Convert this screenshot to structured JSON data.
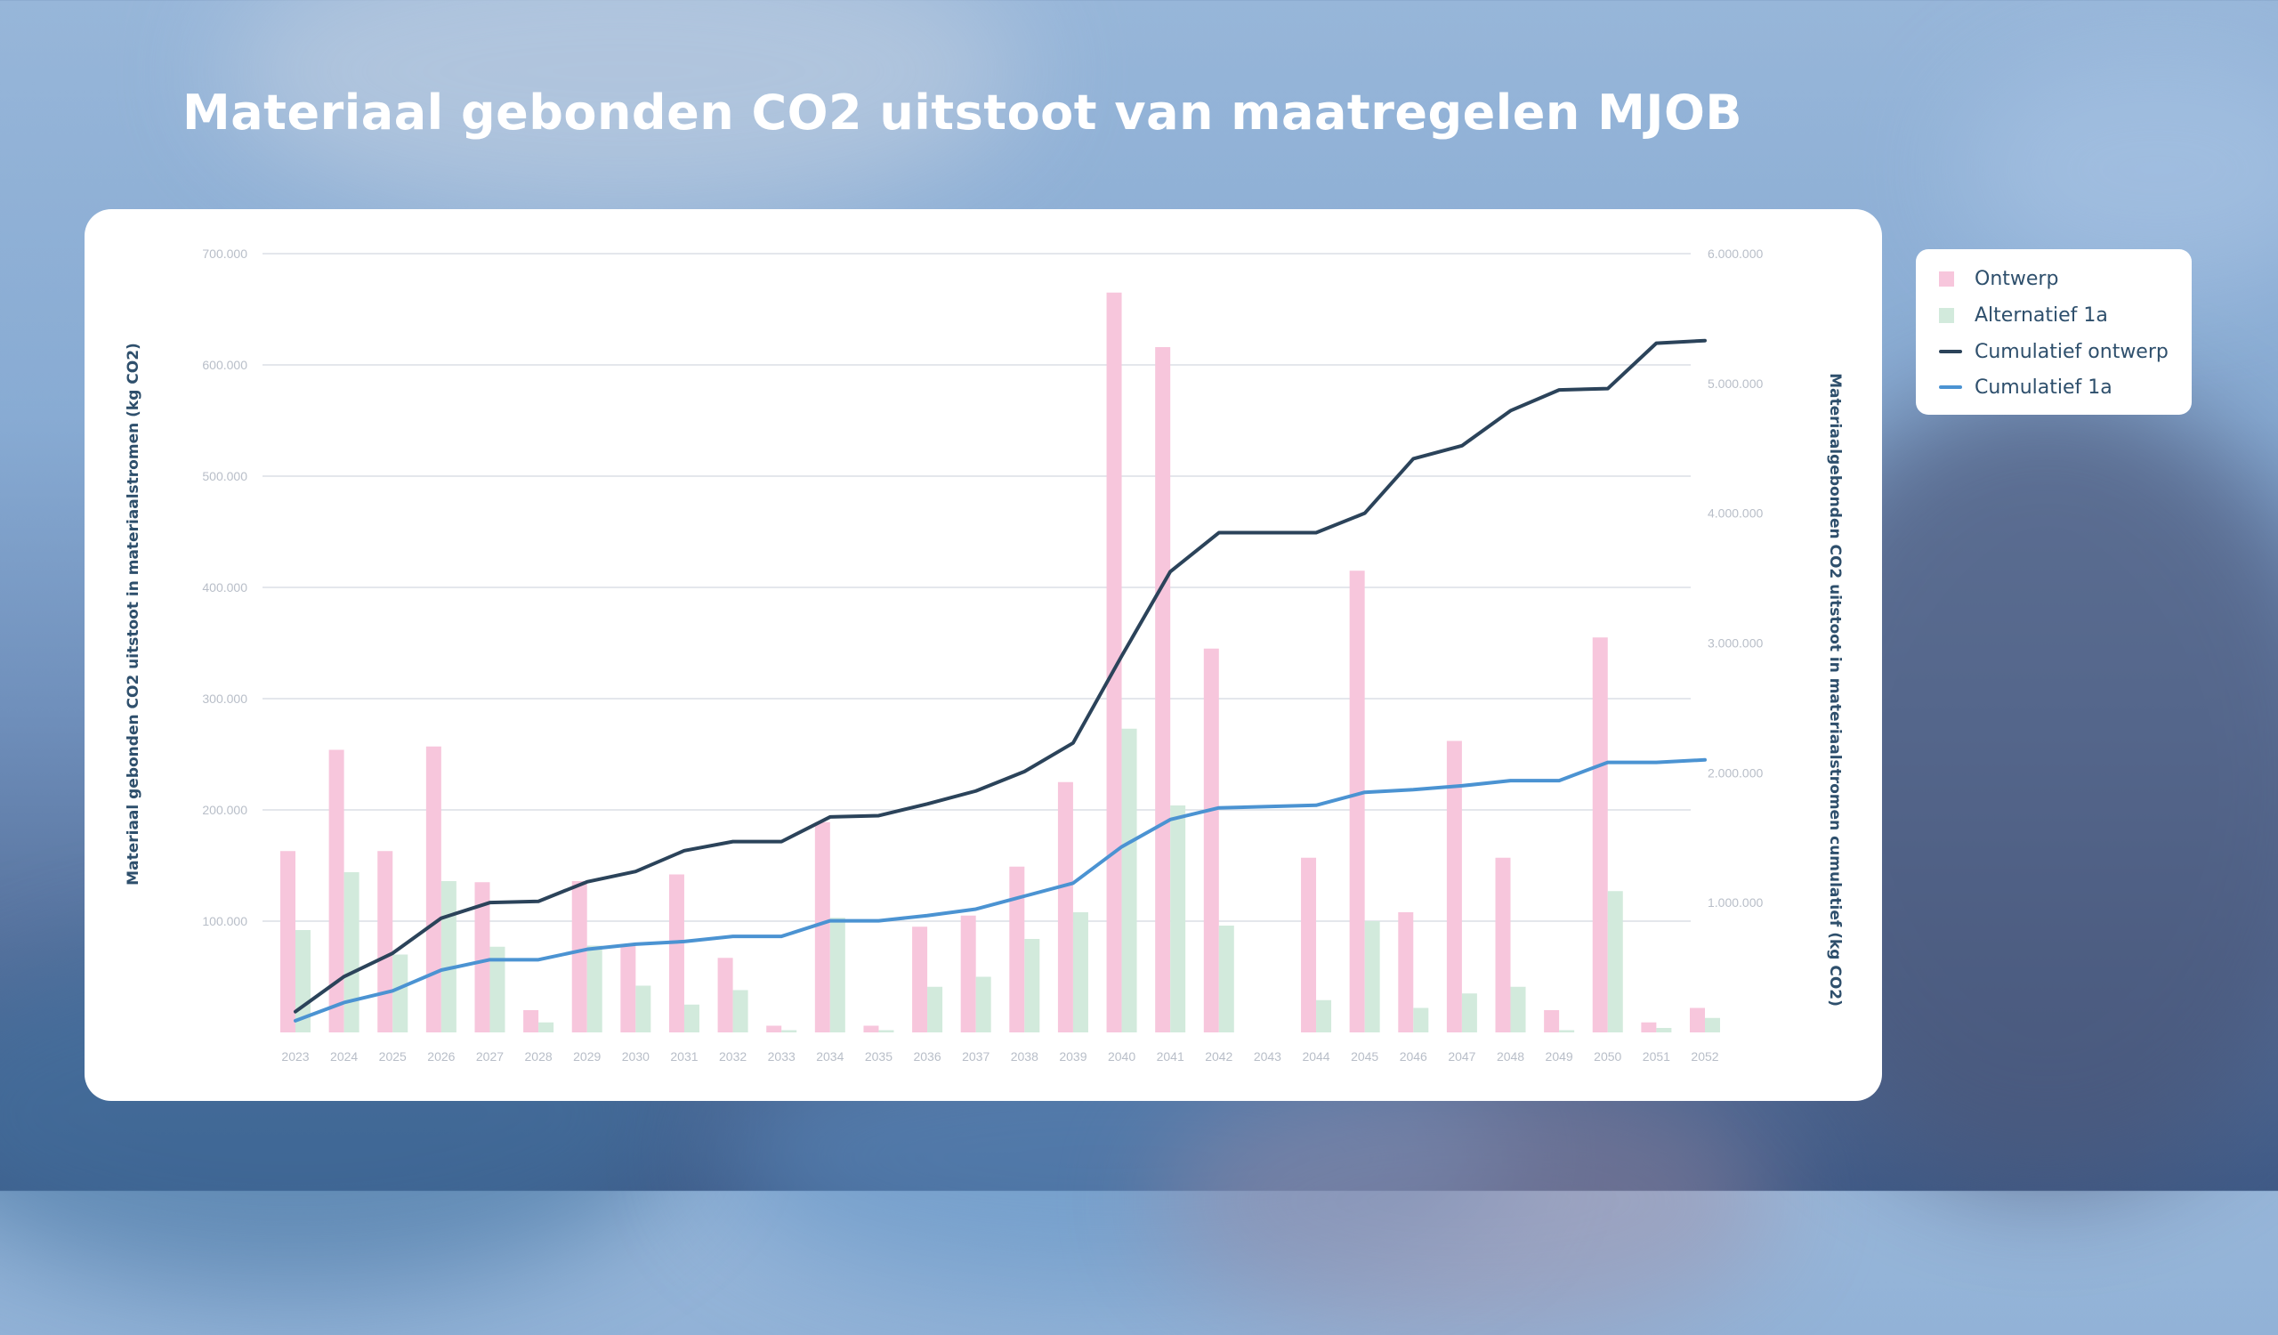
{
  "page": {
    "title": "Materiaal gebonden CO2 uitstoot van maatregelen MJOB"
  },
  "colors": {
    "ontwerp_bar": "#f7c6dc",
    "alternatief_bar": "#d2eadc",
    "cumulatief_ontwerp": "#2b435a",
    "cumulatief_1a": "#4b93d2",
    "grid": "#dcdfe5",
    "axis_title": "#2e4f6c"
  },
  "legend": {
    "items": [
      {
        "label": "Ontwerp",
        "kind": "square",
        "color": "#f7c6dc"
      },
      {
        "label": "Alternatief 1a",
        "kind": "square",
        "color": "#d2eadc"
      },
      {
        "label": "Cumulatief ontwerp",
        "kind": "line",
        "color": "#2b435a"
      },
      {
        "label": "Cumulatief 1a",
        "kind": "line",
        "color": "#4b93d2"
      }
    ]
  },
  "chart_data": {
    "type": "bar",
    "title": "Materiaal gebonden CO2 uitstoot van maatregelen MJOB",
    "xlabel": "",
    "ylabel": "Materiaal gebonden CO2 uitstoot in materiaalstromen (kg CO2)",
    "y2label": "Materiaalgebonden CO2 uitstoot in materiaalstromen cumulatief (kg CO2)",
    "ylim": [
      0,
      700000
    ],
    "y2lim": [
      0,
      6000000
    ],
    "yticks": [
      "100.000",
      "200.000",
      "300.000",
      "400.000",
      "500.000",
      "600.000",
      "700.000"
    ],
    "y2ticks": [
      "1.000.000",
      "2.000.000",
      "3.000.000",
      "4.000.000",
      "5.000.000",
      "6.000.000"
    ],
    "legend_position": "right",
    "grid": true,
    "categories": [
      "2023",
      "2024",
      "2025",
      "2026",
      "2027",
      "2028",
      "2029",
      "2030",
      "2031",
      "2032",
      "2033",
      "2034",
      "2035",
      "2036",
      "2037",
      "2038",
      "2039",
      "2040",
      "2041",
      "2042",
      "2043",
      "2044",
      "2045",
      "2046",
      "2047",
      "2048",
      "2049",
      "2050",
      "2051",
      "2052"
    ],
    "series": [
      {
        "name": "Ontwerp",
        "type": "bar",
        "axis": "left",
        "values": [
          163000,
          254000,
          163000,
          257000,
          135000,
          20000,
          136000,
          78000,
          142000,
          67000,
          6000,
          189000,
          6000,
          95000,
          105000,
          149000,
          225000,
          665000,
          616000,
          345000,
          0,
          157000,
          415000,
          108000,
          262000,
          157000,
          20000,
          355000,
          9000,
          22000
        ]
      },
      {
        "name": "Alternatief 1a",
        "type": "bar",
        "axis": "left",
        "values": [
          92000,
          144000,
          70000,
          136000,
          77000,
          9000,
          78000,
          42000,
          25000,
          38000,
          2000,
          103000,
          2000,
          41000,
          50000,
          84000,
          108000,
          273000,
          204000,
          96000,
          0,
          29000,
          100000,
          22000,
          35000,
          41000,
          2000,
          127000,
          4000,
          13000
        ]
      },
      {
        "name": "Cumulatief ontwerp",
        "type": "line",
        "axis": "right",
        "values": [
          160000,
          430000,
          610000,
          880000,
          1000000,
          1010000,
          1160000,
          1240000,
          1400000,
          1470000,
          1470000,
          1660000,
          1670000,
          1760000,
          1860000,
          2010000,
          2230000,
          2900000,
          3550000,
          3850000,
          3850000,
          3850000,
          4000000,
          4420000,
          4520000,
          4790000,
          4950000,
          4960000,
          5310000,
          5330000
        ]
      },
      {
        "name": "Cumulatief 1a",
        "type": "line",
        "axis": "right",
        "values": [
          90000,
          230000,
          320000,
          480000,
          560000,
          560000,
          640000,
          680000,
          700000,
          740000,
          740000,
          860000,
          860000,
          900000,
          950000,
          1050000,
          1150000,
          1430000,
          1640000,
          1730000,
          1740000,
          1750000,
          1850000,
          1870000,
          1900000,
          1940000,
          1940000,
          2080000,
          2080000,
          2100000
        ]
      }
    ]
  }
}
